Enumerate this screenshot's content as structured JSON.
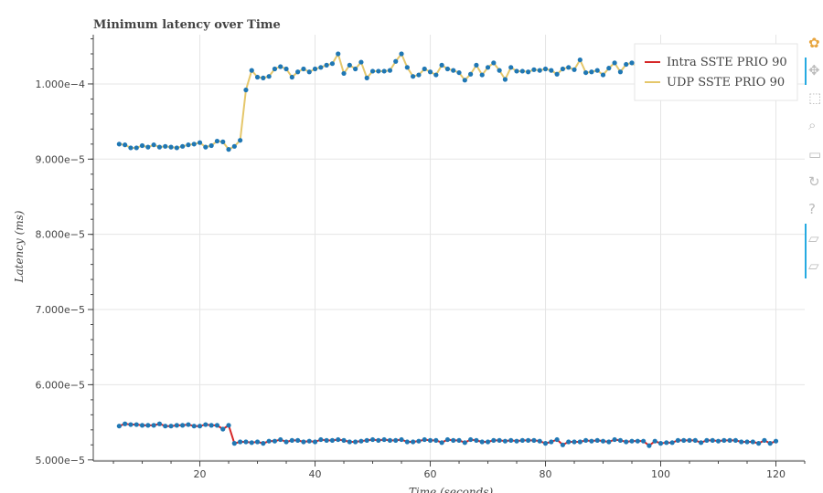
{
  "chart_data": {
    "type": "line",
    "title": "Minimum latency over Time",
    "xlabel": "Time (seconds)",
    "ylabel": "Latency (ms)",
    "xlim": [
      1.5,
      125
    ],
    "ylim": [
      4.985e-05,
      0.00010655
    ],
    "x_ticks": [
      20,
      40,
      60,
      80,
      100,
      120
    ],
    "y_ticks": [
      5e-05,
      6e-05,
      7e-05,
      8e-05,
      9e-05,
      0.0001
    ],
    "y_tick_labels": [
      "5.000e−5",
      "6.000e−5",
      "7.000e−5",
      "8.000e−5",
      "9.000e−5",
      "1.000e−4"
    ],
    "grid": true,
    "legend_position": "top-right",
    "x": [
      6,
      7,
      8,
      9,
      10,
      11,
      12,
      13,
      14,
      15,
      16,
      17,
      18,
      19,
      20,
      21,
      22,
      23,
      24,
      25,
      26,
      27,
      28,
      29,
      30,
      31,
      32,
      33,
      34,
      35,
      36,
      37,
      38,
      39,
      40,
      41,
      42,
      43,
      44,
      45,
      46,
      47,
      48,
      49,
      50,
      51,
      52,
      53,
      54,
      55,
      56,
      57,
      58,
      59,
      60,
      61,
      62,
      63,
      64,
      65,
      66,
      67,
      68,
      69,
      70,
      71,
      72,
      73,
      74,
      75,
      76,
      77,
      78,
      79,
      80,
      81,
      82,
      83,
      84,
      85,
      86,
      87,
      88,
      89,
      90,
      91,
      92,
      93,
      94,
      95,
      96,
      97,
      98,
      99,
      100,
      101,
      102,
      103,
      104,
      105,
      106,
      107,
      108,
      109,
      110,
      111,
      112,
      113,
      114,
      115,
      116,
      117,
      118,
      119,
      120
    ],
    "series": [
      {
        "name": "Intra SSTE PRIO 90",
        "color": "#d62728",
        "marker_color": "#1f77b4",
        "values": [
          5.45e-05,
          5.48e-05,
          5.47e-05,
          5.47e-05,
          5.46e-05,
          5.46e-05,
          5.46e-05,
          5.48e-05,
          5.45e-05,
          5.45e-05,
          5.46e-05,
          5.46e-05,
          5.47e-05,
          5.45e-05,
          5.45e-05,
          5.47e-05,
          5.46e-05,
          5.46e-05,
          5.41e-05,
          5.46e-05,
          5.22e-05,
          5.24e-05,
          5.24e-05,
          5.23e-05,
          5.24e-05,
          5.22e-05,
          5.25e-05,
          5.25e-05,
          5.27e-05,
          5.24e-05,
          5.26e-05,
          5.26e-05,
          5.24e-05,
          5.25e-05,
          5.24e-05,
          5.27e-05,
          5.26e-05,
          5.26e-05,
          5.27e-05,
          5.26e-05,
          5.24e-05,
          5.24e-05,
          5.25e-05,
          5.26e-05,
          5.27e-05,
          5.26e-05,
          5.27e-05,
          5.26e-05,
          5.26e-05,
          5.27e-05,
          5.24e-05,
          5.24e-05,
          5.25e-05,
          5.27e-05,
          5.26e-05,
          5.26e-05,
          5.23e-05,
          5.27e-05,
          5.26e-05,
          5.26e-05,
          5.23e-05,
          5.27e-05,
          5.26e-05,
          5.24e-05,
          5.24e-05,
          5.26e-05,
          5.26e-05,
          5.25e-05,
          5.26e-05,
          5.25e-05,
          5.26e-05,
          5.26e-05,
          5.26e-05,
          5.25e-05,
          5.22e-05,
          5.24e-05,
          5.27e-05,
          5.2e-05,
          5.24e-05,
          5.24e-05,
          5.24e-05,
          5.26e-05,
          5.25e-05,
          5.26e-05,
          5.25e-05,
          5.24e-05,
          5.27e-05,
          5.26e-05,
          5.24e-05,
          5.25e-05,
          5.25e-05,
          5.25e-05,
          5.19e-05,
          5.25e-05,
          5.22e-05,
          5.23e-05,
          5.23e-05,
          5.26e-05,
          5.26e-05,
          5.26e-05,
          5.26e-05,
          5.23e-05,
          5.26e-05,
          5.26e-05,
          5.25e-05,
          5.26e-05,
          5.26e-05,
          5.26e-05,
          5.24e-05,
          5.24e-05,
          5.24e-05,
          5.22e-05,
          5.26e-05,
          5.22e-05,
          5.25e-05
        ]
      },
      {
        "name": "UDP SSTE PRIO 90",
        "color": "#e5c76b",
        "marker_color": "#1f77b4",
        "values": [
          9.2e-05,
          9.19e-05,
          9.15e-05,
          9.15e-05,
          9.18e-05,
          9.16e-05,
          9.19e-05,
          9.16e-05,
          9.17e-05,
          9.16e-05,
          9.15e-05,
          9.17e-05,
          9.19e-05,
          9.2e-05,
          9.22e-05,
          9.16e-05,
          9.18e-05,
          9.24e-05,
          9.23e-05,
          9.13e-05,
          9.17e-05,
          9.25e-05,
          9.92e-05,
          0.0001018,
          0.0001009,
          0.0001008,
          0.000101,
          0.000102,
          0.0001023,
          0.000102,
          0.0001009,
          0.0001016,
          0.000102,
          0.0001016,
          0.000102,
          0.0001022,
          0.0001025,
          0.0001027,
          0.000104,
          0.0001014,
          0.0001025,
          0.000102,
          0.0001029,
          0.0001008,
          0.0001017,
          0.0001017,
          0.0001017,
          0.0001018,
          0.000103,
          0.000104,
          0.0001022,
          0.000101,
          0.0001012,
          0.000102,
          0.0001016,
          0.0001012,
          0.0001025,
          0.000102,
          0.0001018,
          0.0001015,
          0.0001005,
          0.0001013,
          0.0001025,
          0.0001012,
          0.0001022,
          0.0001028,
          0.0001018,
          0.0001006,
          0.0001022,
          0.0001017,
          0.0001017,
          0.0001016,
          0.0001019,
          0.0001018,
          0.000102,
          0.0001018,
          0.0001013,
          0.000102,
          0.0001022,
          0.0001019,
          0.0001032,
          0.0001015,
          0.0001016,
          0.0001018,
          0.0001012,
          0.0001021,
          0.0001028,
          0.0001016,
          0.0001026,
          0.0001028,
          0.0001022,
          0.0001018,
          0.000102,
          0.000102,
          0.0001024,
          0.000102,
          0.000102,
          0.000102,
          0.0001021,
          0.000102,
          0.0001018,
          0.000102,
          0.000102,
          0.0001022,
          0.000102,
          0.0001019,
          0.0001021,
          0.000102,
          0.000102,
          0.000102,
          0.000102,
          0.000102,
          0.000102,
          0.000102,
          0.000102
        ]
      }
    ]
  },
  "toolbar": {
    "accent_color": "#26aae1",
    "tools": [
      {
        "name": "bokeh-logo-icon",
        "glyph": "✿"
      },
      {
        "name": "pan-icon",
        "glyph": "✥"
      },
      {
        "name": "box-zoom-icon",
        "glyph": "⬚"
      },
      {
        "name": "wheel-zoom-icon",
        "glyph": "⌕"
      },
      {
        "name": "save-icon",
        "glyph": "▭"
      },
      {
        "name": "reset-icon",
        "glyph": "↻"
      },
      {
        "name": "help-icon",
        "glyph": "?"
      },
      {
        "name": "hover-icon-1",
        "glyph": "▱"
      },
      {
        "name": "hover-icon-2",
        "glyph": "▱"
      }
    ]
  }
}
